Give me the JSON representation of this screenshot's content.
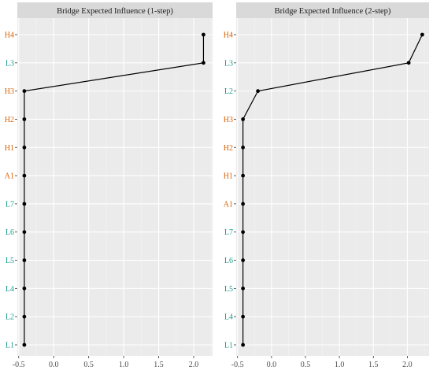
{
  "chart_data": [
    {
      "type": "line",
      "title": "Bridge Expected Influence (1-step)",
      "categories": [
        "L1",
        "L2",
        "L4",
        "L5",
        "L6",
        "L7",
        "A1",
        "H1",
        "H2",
        "H3",
        "L3",
        "H4"
      ],
      "category_colors": [
        "#1a9e8f",
        "#1a9e8f",
        "#1a9e8f",
        "#1a9e8f",
        "#1a9e8f",
        "#1a9e8f",
        "#d95f02",
        "#d95f02",
        "#d95f02",
        "#d95f02",
        "#1a9e8f",
        "#d95f02"
      ],
      "values": [
        -0.42,
        -0.42,
        -0.42,
        -0.42,
        -0.42,
        -0.42,
        -0.42,
        -0.42,
        -0.42,
        -0.42,
        2.14,
        2.14
      ],
      "x_ticks": [
        "-0.5",
        "0.0",
        "0.5",
        "1.0",
        "1.5",
        "2.0"
      ],
      "xlim": [
        -0.52,
        2.27
      ],
      "grid": true
    },
    {
      "type": "line",
      "title": "Bridge Expected Influence (2-step)",
      "categories": [
        "L1",
        "L4",
        "L5",
        "L6",
        "L7",
        "A1",
        "H1",
        "H2",
        "H3",
        "L2",
        "L3",
        "H4"
      ],
      "category_colors": [
        "#1a9e8f",
        "#1a9e8f",
        "#1a9e8f",
        "#1a9e8f",
        "#1a9e8f",
        "#d95f02",
        "#d95f02",
        "#d95f02",
        "#d95f02",
        "#1a9e8f",
        "#1a9e8f",
        "#d95f02"
      ],
      "values": [
        -0.42,
        -0.42,
        -0.42,
        -0.42,
        -0.42,
        -0.42,
        -0.42,
        -0.42,
        -0.42,
        -0.2,
        2.02,
        2.22
      ],
      "x_ticks": [
        "-0.5",
        "0.0",
        "0.5",
        "1.0",
        "1.5",
        "2.0"
      ],
      "xlim": [
        -0.52,
        2.32
      ],
      "grid": true
    }
  ],
  "colors": {
    "panel_bg": "#ebebeb",
    "strip_bg": "#d9d9d9",
    "grid_major": "#ffffff",
    "grid_minor": "#f4f4f4",
    "line": "#000000"
  }
}
